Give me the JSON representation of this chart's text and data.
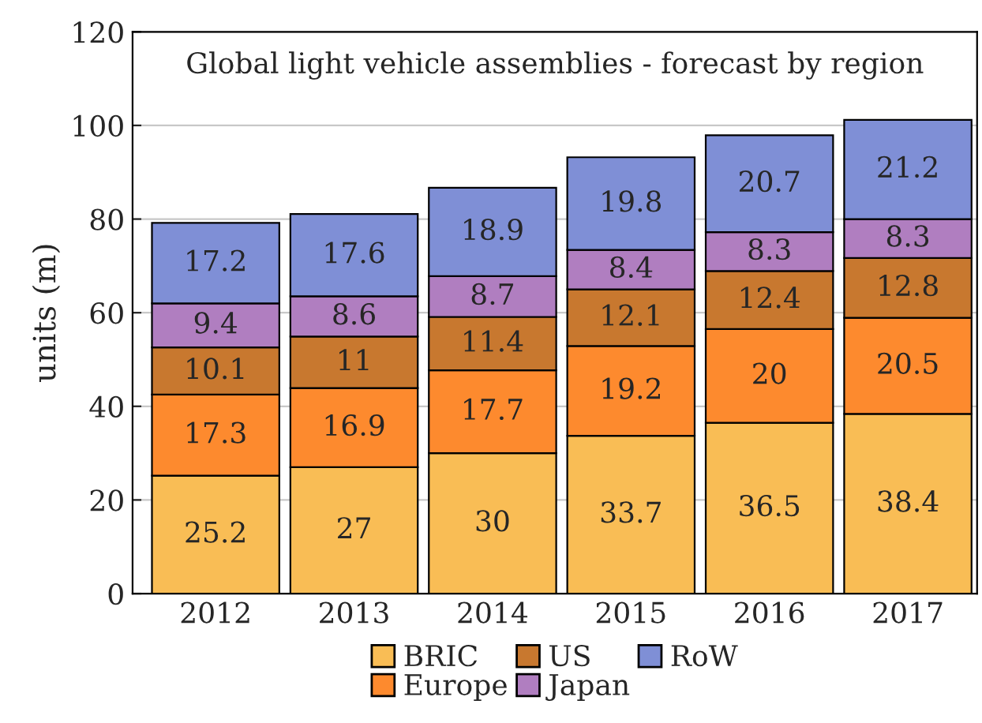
{
  "chart_data": {
    "type": "bar",
    "title": "Global light vehicle assemblies - forecast by region",
    "ylabel": "units (m)",
    "categories": [
      "2012",
      "2013",
      "2014",
      "2015",
      "2016",
      "2017"
    ],
    "stacked": true,
    "data_labels": true,
    "ylim": [
      0,
      120
    ],
    "yticks": [
      0,
      20,
      40,
      60,
      80,
      100,
      120
    ],
    "grid": "y",
    "legend": "bottom",
    "series": [
      {
        "name": "BRIC",
        "color": "#f9bd55",
        "values": [
          25.2,
          27,
          30,
          33.7,
          36.5,
          38.4
        ]
      },
      {
        "name": "Europe",
        "color": "#fd8a2e",
        "values": [
          17.3,
          16.9,
          17.7,
          19.2,
          20,
          20.5
        ]
      },
      {
        "name": "US",
        "color": "#c8782f",
        "values": [
          10.1,
          11,
          11.4,
          12.1,
          12.4,
          12.8
        ]
      },
      {
        "name": "Japan",
        "color": "#b07ec0",
        "values": [
          9.4,
          8.6,
          8.7,
          8.4,
          8.3,
          8.3
        ]
      },
      {
        "name": "RoW",
        "color": "#7f8fd6",
        "values": [
          17.2,
          17.6,
          18.9,
          19.8,
          20.7,
          21.2
        ]
      }
    ]
  }
}
